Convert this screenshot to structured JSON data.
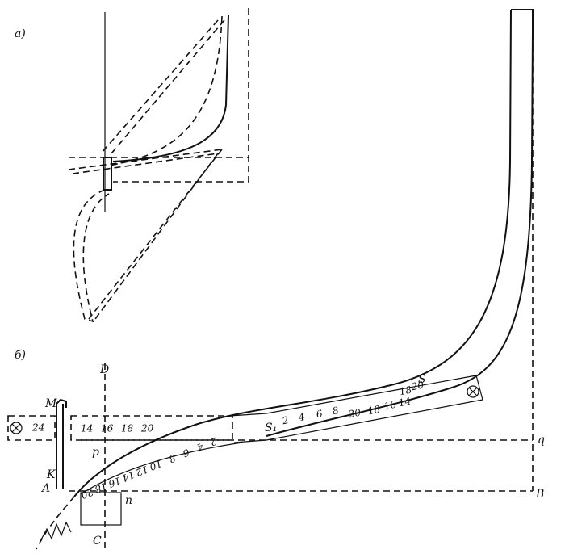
{
  "panels": {
    "a": "а)",
    "b": "б)"
  },
  "labels": {
    "D": "D",
    "M": "M",
    "A": "A",
    "K": "K",
    "p": "p",
    "n": "n",
    "C": "C",
    "q": "q",
    "B": "B",
    "S": "S",
    "S1": "S₁"
  },
  "scales": {
    "left_ruler": [
      "14",
      "16",
      "18",
      "20"
    ],
    "left_box": [
      "24"
    ],
    "upper_ruler": [
      "2",
      "4",
      "6",
      "8",
      "20",
      "18",
      "16",
      "14",
      "18",
      "20"
    ],
    "lower_ruler": [
      "2",
      "4",
      "6",
      "8",
      "10",
      "12",
      "14",
      "16",
      "18",
      "20"
    ]
  }
}
